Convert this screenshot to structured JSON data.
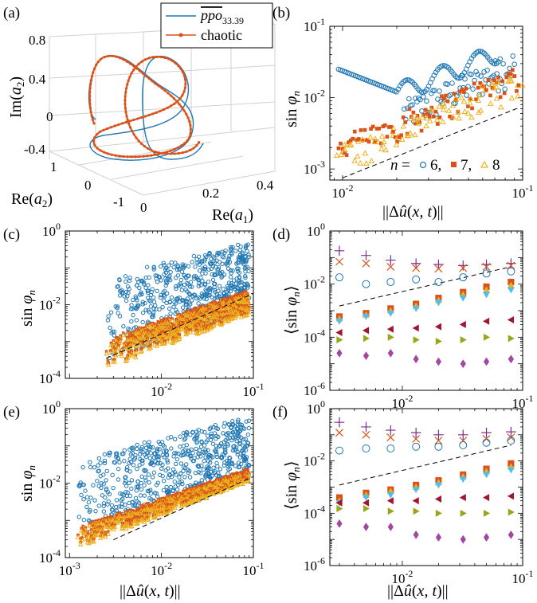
{
  "figure": {
    "panels": [
      {
        "id": "a",
        "label": "(a)"
      },
      {
        "id": "b",
        "label": "(b)"
      },
      {
        "id": "c",
        "label": "(c)"
      },
      {
        "id": "d",
        "label": "(d)"
      },
      {
        "id": "e",
        "label": "(e)"
      },
      {
        "id": "f",
        "label": "(f)"
      }
    ]
  },
  "colors": {
    "blue": "#1f77b4",
    "orange": "#d95319",
    "yellow": "#edb120",
    "purple": "#7e2f8e",
    "green": "#9aa51b",
    "cyan": "#4dbeee",
    "darkred": "#a2142f",
    "magenta": "#a347a0",
    "axis": "#000000",
    "grid3d": "#d0d0d0"
  },
  "chart_data": [
    {
      "panel": "a",
      "type": "line",
      "projection": "3d",
      "xlabel": "Re(a1)",
      "ylabel": "Re(a2)",
      "zlabel": "Im(a2)",
      "xticks": [
        "0",
        "0.2",
        "0.4"
      ],
      "yticks": [
        "1",
        "0",
        "-1"
      ],
      "zticks": [
        "0.8",
        "0.4",
        "0",
        "-0.4"
      ],
      "xlim": [
        0,
        0.4
      ],
      "ylim": [
        -1,
        1
      ],
      "zlim": [
        -0.4,
        0.8
      ],
      "grid": true,
      "legend": {
        "position": "top-right",
        "entries": [
          "ppo 33.39",
          "chaotic"
        ]
      },
      "series": [
        {
          "name": "ppo 33.39",
          "style": "line",
          "color": "#1f77b4",
          "description_points": [
            [
              0.05,
              -0.2,
              0.5
            ],
            [
              0.18,
              0.6,
              0.6
            ],
            [
              0.12,
              -0.4,
              -0.3
            ],
            [
              0.3,
              0.1,
              0.2
            ],
            [
              0.05,
              -0.2,
              0.5
            ]
          ]
        },
        {
          "name": "chaotic",
          "style": "line-markers",
          "color": "#d95319",
          "description_points": [
            [
              0.06,
              -0.3,
              0.45
            ],
            [
              0.2,
              0.5,
              0.55
            ],
            [
              0.14,
              -0.3,
              -0.1
            ],
            [
              0.28,
              0.0,
              0.1
            ],
            [
              0.08,
              -0.1,
              0.35
            ]
          ]
        }
      ]
    },
    {
      "panel": "b",
      "type": "scatter",
      "xscale": "log",
      "yscale": "log",
      "xlabel": "||Δû(x, t)||",
      "ylabel": "sin φn",
      "xlim": [
        0.0085,
        0.1
      ],
      "ylim": [
        0.0007,
        0.1
      ],
      "xticks": [
        "10-2",
        "10-1"
      ],
      "yticks": [
        "10-3",
        "10-2",
        "10-1"
      ],
      "legend": {
        "position": "bottom-right",
        "prefix": "n =",
        "entries": [
          "6,",
          "7,",
          "8"
        ]
      },
      "reference_line": {
        "style": "dashed",
        "slope": 1,
        "x": [
          0.01,
          0.095
        ],
        "y": [
          0.00075,
          0.0072
        ]
      },
      "series": [
        {
          "name": "6",
          "marker": "circle-open",
          "color": "#1f77b4",
          "trend": "orbit loop from upper-left to upper-right, 0.01 to 0.06"
        },
        {
          "name": "7",
          "marker": "square-filled",
          "color": "#d95319",
          "trend": "follows reference slope, 0.0009 to 0.03"
        },
        {
          "name": "8",
          "marker": "triangle-open",
          "color": "#edb120",
          "trend": "follows reference slope, 0.0008 to 0.02"
        }
      ]
    },
    {
      "panel": "c",
      "type": "scatter",
      "xscale": "log",
      "yscale": "log",
      "xlabel": "",
      "ylabel": "sin φn",
      "xlim": [
        0.0009,
        0.1
      ],
      "ylim": [
        0.0001,
        1
      ],
      "xticks": [
        "10-2",
        "10-1"
      ],
      "yticks": [
        "10-4",
        "10-2",
        "100"
      ],
      "reference_line": {
        "style": "dashed",
        "x": [
          0.0025,
          0.1
        ],
        "y": [
          0.00035,
          0.02
        ]
      },
      "series": [
        {
          "name": "blue",
          "marker": "circle-open",
          "color": "#1f77b4",
          "range_x": [
            0.0025,
            0.09
          ],
          "range_y": [
            0.0003,
            0.6
          ]
        },
        {
          "name": "orange",
          "marker": "square-filled",
          "color": "#d95319",
          "range_x": [
            0.0025,
            0.09
          ],
          "range_y": [
            0.0002,
            0.03
          ]
        },
        {
          "name": "yellow",
          "marker": "triangle-open",
          "color": "#edb120",
          "range_x": [
            0.0025,
            0.09
          ],
          "range_y": [
            0.00015,
            0.025
          ]
        }
      ]
    },
    {
      "panel": "d",
      "type": "scatter",
      "xscale": "log",
      "yscale": "log",
      "xlabel": "",
      "ylabel": "⟨sin φn⟩",
      "xlim": [
        0.0025,
        0.1
      ],
      "ylim": [
        1e-06,
        1
      ],
      "xticks": [
        "10-2",
        "10-1"
      ],
      "yticks": [
        "10-6",
        "10-4",
        "10-2",
        "100"
      ],
      "x": [
        0.003,
        0.005,
        0.008,
        0.013,
        0.02,
        0.032,
        0.05,
        0.08
      ],
      "reference_line": {
        "style": "dashed",
        "x": [
          0.003,
          0.08
        ],
        "y": [
          0.0015,
          0.045
        ]
      },
      "series": [
        {
          "marker": "plus",
          "color": "#7e2f8e",
          "values": [
            0.18,
            0.12,
            0.08,
            0.06,
            0.055,
            0.05,
            0.055,
            0.06
          ]
        },
        {
          "marker": "x",
          "color": "#d95319",
          "values": [
            0.07,
            0.06,
            0.045,
            0.04,
            0.038,
            0.04,
            0.045,
            0.05
          ]
        },
        {
          "marker": "circle-open",
          "color": "#1f77b4",
          "values": [
            0.018,
            0.01,
            0.012,
            0.015,
            0.012,
            0.018,
            0.025,
            0.03
          ]
        },
        {
          "marker": "square-filled",
          "color": "#d95319",
          "values": [
            0.0006,
            0.0008,
            0.0012,
            0.0018,
            0.003,
            0.005,
            0.008,
            0.012
          ]
        },
        {
          "marker": "triangle-up",
          "color": "#edb120",
          "values": [
            0.0005,
            0.0007,
            0.001,
            0.0015,
            0.0025,
            0.004,
            0.006,
            0.009
          ]
        },
        {
          "marker": "triangle-down",
          "color": "#4dbeee",
          "values": [
            0.0004,
            0.0006,
            0.0008,
            0.0012,
            0.002,
            0.003,
            0.004,
            0.006
          ]
        },
        {
          "marker": "triangle-left",
          "color": "#a2142f",
          "values": [
            0.00015,
            0.00018,
            0.0002,
            0.00022,
            0.00025,
            0.0003,
            0.0004,
            0.00045
          ]
        },
        {
          "marker": "triangle-right",
          "color": "#9aa51b",
          "values": [
            8e-05,
            9e-05,
            0.0001,
            8e-05,
            7e-05,
            8e-05,
            0.0001,
            9e-05
          ]
        },
        {
          "marker": "diamond",
          "color": "#a347a0",
          "values": [
            2.5e-05,
            2e-05,
            2.5e-05,
            1.5e-05,
            1.2e-05,
            1e-05,
            1.2e-05,
            1.5e-05
          ]
        }
      ]
    },
    {
      "panel": "e",
      "type": "scatter",
      "xscale": "log",
      "yscale": "log",
      "xlabel": "||Δû(x, t)||",
      "ylabel": "sin φn",
      "xlim": [
        0.0009,
        0.1
      ],
      "ylim": [
        0.0001,
        1
      ],
      "xticks": [
        "10-3",
        "10-2",
        "10-1"
      ],
      "yticks": [
        "10-4",
        "10-2",
        "100"
      ],
      "reference_line": {
        "style": "dashed",
        "x": [
          0.003,
          0.1
        ],
        "y": [
          0.0003,
          0.015
        ]
      },
      "series": [
        {
          "name": "blue",
          "marker": "circle-open",
          "color": "#1f77b4",
          "range_x": [
            0.0012,
            0.09
          ],
          "range_y": [
            0.0004,
            0.7
          ]
        },
        {
          "name": "orange",
          "marker": "square-filled",
          "color": "#d95319",
          "range_x": [
            0.0012,
            0.09
          ],
          "range_y": [
            0.0002,
            0.03
          ]
        },
        {
          "name": "yellow",
          "marker": "triangle-open",
          "color": "#edb120",
          "range_x": [
            0.0012,
            0.09
          ],
          "range_y": [
            0.00015,
            0.025
          ]
        }
      ]
    },
    {
      "panel": "f",
      "type": "scatter",
      "xscale": "log",
      "yscale": "log",
      "xlabel": "||Δû(x, t)||",
      "ylabel": "⟨sin φn⟩",
      "xlim": [
        0.0025,
        0.1
      ],
      "ylim": [
        1e-06,
        1
      ],
      "xticks": [
        "10-2",
        "10-1"
      ],
      "yticks": [
        "10-6",
        "10-4",
        "10-2",
        "100"
      ],
      "x": [
        0.003,
        0.005,
        0.008,
        0.013,
        0.02,
        0.032,
        0.05,
        0.08
      ],
      "reference_line": {
        "style": "dashed",
        "x": [
          0.003,
          0.08
        ],
        "y": [
          0.0012,
          0.04
        ]
      },
      "series": [
        {
          "marker": "plus",
          "color": "#7e2f8e",
          "values": [
            0.3,
            0.2,
            0.15,
            0.12,
            0.1,
            0.1,
            0.12,
            0.13
          ]
        },
        {
          "marker": "x",
          "color": "#d95319",
          "values": [
            0.12,
            0.1,
            0.08,
            0.07,
            0.06,
            0.06,
            0.07,
            0.08
          ]
        },
        {
          "marker": "circle-open",
          "color": "#1f77b4",
          "values": [
            0.025,
            0.03,
            0.03,
            0.035,
            0.035,
            0.04,
            0.05,
            0.06
          ]
        },
        {
          "marker": "square-filled",
          "color": "#d95319",
          "values": [
            0.0004,
            0.0006,
            0.0008,
            0.0012,
            0.0018,
            0.003,
            0.005,
            0.008
          ]
        },
        {
          "marker": "triangle-up",
          "color": "#edb120",
          "values": [
            0.0003,
            0.0005,
            0.0007,
            0.001,
            0.0015,
            0.0025,
            0.004,
            0.006
          ]
        },
        {
          "marker": "triangle-down",
          "color": "#4dbeee",
          "values": [
            0.00025,
            0.0004,
            0.0005,
            0.0008,
            0.0012,
            0.002,
            0.003,
            0.0045
          ]
        },
        {
          "marker": "triangle-left",
          "color": "#a2142f",
          "values": [
            0.00025,
            0.00025,
            0.0003,
            0.0003,
            0.00035,
            0.0004,
            0.0004,
            0.00045
          ]
        },
        {
          "marker": "triangle-right",
          "color": "#9aa51b",
          "values": [
            0.00015,
            0.00015,
            0.00012,
            0.00012,
            0.0001,
            0.0001,
            0.0001,
            0.00011
          ]
        },
        {
          "marker": "diamond",
          "color": "#a347a0",
          "values": [
            4e-05,
            3e-05,
            3e-05,
            1.5e-05,
            1.2e-05,
            1e-05,
            1.2e-05,
            1.5e-05
          ]
        }
      ]
    }
  ]
}
